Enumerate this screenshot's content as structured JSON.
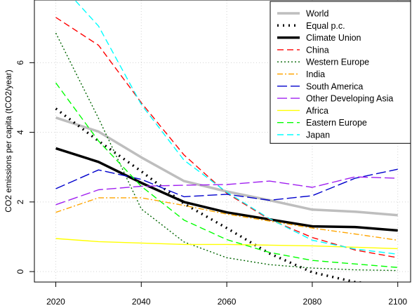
{
  "chart_data": {
    "type": "line",
    "title": "",
    "xlabel": "",
    "ylabel": "CO2 emissions per capita (tCO2/year)",
    "xlim": [
      2015,
      2103
    ],
    "ylim": [
      -0.3,
      7.8
    ],
    "x_ticks": [
      2020,
      2040,
      2060,
      2080,
      2100
    ],
    "y_ticks": [
      0,
      2,
      4,
      6
    ],
    "grid": true,
    "legend_position": "top-right",
    "x": [
      2020,
      2030,
      2040,
      2050,
      2060,
      2070,
      2080,
      2090,
      2100
    ],
    "series": [
      {
        "name": "World",
        "color": "#bebebe",
        "style": "solid",
        "width": "thick",
        "values": [
          4.42,
          4.02,
          3.28,
          2.6,
          2.3,
          2.05,
          1.78,
          1.72,
          1.62
        ]
      },
      {
        "name": "Equal p.c.",
        "color": "#000000",
        "style": "dotted",
        "width": "thick",
        "values": [
          4.68,
          3.75,
          2.88,
          1.95,
          1.25,
          0.52,
          -0.02,
          -0.3,
          -0.42
        ]
      },
      {
        "name": "Climate Union",
        "color": "#000000",
        "style": "solid",
        "width": "thick",
        "values": [
          3.54,
          3.15,
          2.55,
          2.0,
          1.7,
          1.5,
          1.3,
          1.28,
          1.18
        ]
      },
      {
        "name": "China",
        "color": "#ff0000",
        "style": "dashed",
        "width": "thin",
        "values": [
          7.3,
          6.5,
          4.85,
          3.35,
          2.25,
          1.5,
          0.98,
          0.62,
          0.4
        ]
      },
      {
        "name": "Western Europe",
        "color": "#006400",
        "style": "dotted",
        "width": "thin",
        "values": [
          6.85,
          4.4,
          1.8,
          0.85,
          0.4,
          0.2,
          0.1,
          0.05,
          0.03
        ]
      },
      {
        "name": "India",
        "color": "#ffa500",
        "style": "dashdot",
        "width": "thin",
        "values": [
          1.7,
          2.12,
          2.12,
          1.9,
          1.65,
          1.45,
          1.25,
          1.08,
          0.9
        ]
      },
      {
        "name": "South America",
        "color": "#0000cd",
        "style": "longdash",
        "width": "thin",
        "values": [
          2.38,
          2.92,
          2.65,
          2.15,
          2.22,
          2.05,
          2.18,
          2.68,
          2.94
        ]
      },
      {
        "name": "Other Developing Asia",
        "color": "#a020f0",
        "style": "longdash",
        "width": "thin",
        "values": [
          1.92,
          2.35,
          2.45,
          2.48,
          2.5,
          2.6,
          2.42,
          2.72,
          2.68
        ]
      },
      {
        "name": "Africa",
        "color": "#ffff00",
        "style": "solid",
        "width": "thin",
        "values": [
          0.95,
          0.86,
          0.82,
          0.78,
          0.78,
          0.76,
          0.74,
          0.7,
          0.66
        ]
      },
      {
        "name": "Eastern Europe",
        "color": "#00ff00",
        "style": "dashed",
        "width": "thin",
        "values": [
          5.42,
          3.75,
          2.45,
          1.48,
          0.92,
          0.55,
          0.32,
          0.22,
          0.12
        ]
      },
      {
        "name": "Japan",
        "color": "#00ffff",
        "style": "dashed",
        "width": "thin",
        "values": [
          8.4,
          7.05,
          4.8,
          3.2,
          2.28,
          1.52,
          0.9,
          0.65,
          0.5
        ]
      }
    ]
  }
}
